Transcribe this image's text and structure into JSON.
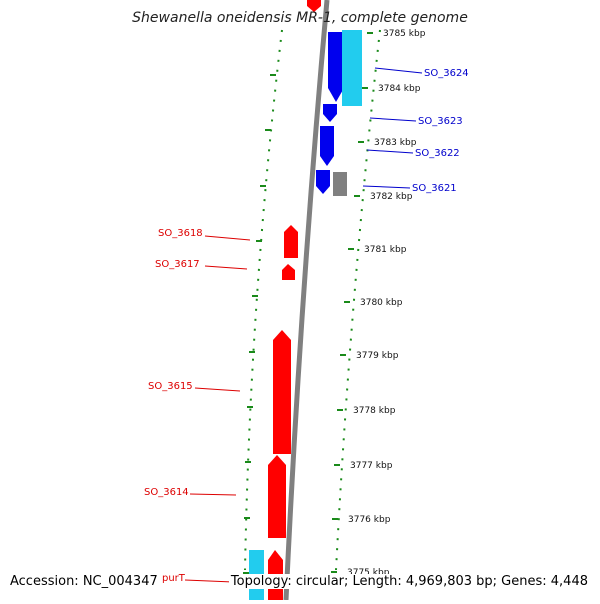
{
  "title": "Shewanella oneidensis MR-1, complete genome",
  "footer": {
    "accession": "Accession: NC_004347",
    "summary": "Topology: circular; Length: 4,969,803 bp; Genes: 4,448"
  },
  "ticks": [
    {
      "label": "3785 kbp",
      "kbp": 3785
    },
    {
      "label": "3784 kbp",
      "kbp": 3784
    },
    {
      "label": "3783 kbp",
      "kbp": 3783
    },
    {
      "label": "3782 kbp",
      "kbp": 3782
    },
    {
      "label": "3781 kbp",
      "kbp": 3781
    },
    {
      "label": "3780 kbp",
      "kbp": 3780
    },
    {
      "label": "3779 kbp",
      "kbp": 3779
    },
    {
      "label": "3778 kbp",
      "kbp": 3778
    },
    {
      "label": "3777 kbp",
      "kbp": 3777
    },
    {
      "label": "3776 kbp",
      "kbp": 3776
    },
    {
      "label": "3775 kbp",
      "kbp": 3775
    }
  ],
  "gene_labels": [
    {
      "name": "SO_3624",
      "side": "right",
      "color": "#0000cc"
    },
    {
      "name": "SO_3623",
      "side": "right",
      "color": "#0000cc"
    },
    {
      "name": "SO_3622",
      "side": "right",
      "color": "#0000cc"
    },
    {
      "name": "SO_3621",
      "side": "right",
      "color": "#0000cc"
    },
    {
      "name": "SO_3618",
      "side": "left",
      "color": "#dd0000"
    },
    {
      "name": "SO_3617",
      "side": "left",
      "color": "#dd0000"
    },
    {
      "name": "SO_3615",
      "side": "left",
      "color": "#dd0000"
    },
    {
      "name": "SO_3614",
      "side": "left",
      "color": "#dd0000"
    },
    {
      "name": "purT",
      "side": "left",
      "color": "#dd0000"
    }
  ],
  "colors": {
    "forward_cds": "#ff0000",
    "reverse_cds": "#0000ee",
    "rna": "#22ccee",
    "other": "#808080",
    "backbone": "#808080",
    "dots": "#1a8a1a"
  }
}
